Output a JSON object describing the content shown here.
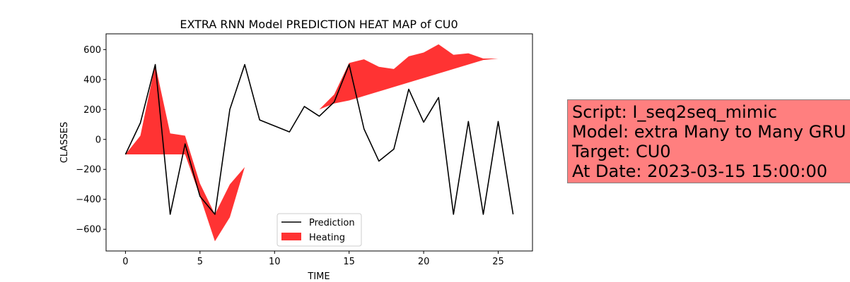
{
  "chart_data": {
    "type": "area",
    "title": "EXTRA RNN Model PREDICTION HEAT MAP of CU0",
    "xlabel": "TIME",
    "ylabel": "CLASSES",
    "xlim": [
      -1.3,
      27.3
    ],
    "ylim": [
      -745,
      705
    ],
    "xticks": [
      0,
      5,
      10,
      15,
      20,
      25
    ],
    "yticks": [
      -600,
      -400,
      -200,
      0,
      200,
      400,
      600
    ],
    "grid": false,
    "legend_position": "lower-center",
    "series": [
      {
        "name": "Prediction",
        "type": "line",
        "color": "#000000",
        "x": [
          0,
          1,
          2,
          3,
          4,
          5,
          6,
          7,
          8,
          9,
          10,
          11,
          12,
          13,
          14,
          15,
          16,
          17,
          18,
          19,
          20,
          21,
          22,
          23,
          24,
          25,
          26
        ],
        "values": [
          -100,
          110,
          500,
          -500,
          -30,
          -380,
          -500,
          200,
          500,
          130,
          90,
          50,
          220,
          155,
          250,
          500,
          70,
          -145,
          -65,
          335,
          115,
          280,
          -500,
          120,
          -500,
          120,
          -500
        ]
      },
      {
        "name": "Heating",
        "type": "fill_between",
        "color": "#ff0000",
        "opacity": 0.8,
        "x": [
          0,
          1,
          2,
          3,
          4,
          5,
          6,
          7,
          8,
          9,
          10,
          11,
          12,
          13,
          14,
          15,
          16,
          17,
          18,
          19,
          20,
          21,
          22,
          23,
          24,
          25,
          26
        ],
        "lower": [
          -100,
          -100,
          -100,
          -100,
          -100,
          -380,
          -680,
          -520,
          -185,
          -95,
          -40,
          -10,
          110,
          200,
          240,
          260,
          290,
          320,
          350,
          380,
          410,
          440,
          470,
          500,
          530,
          540,
          540
        ],
        "upper": [
          -100,
          25,
          500,
          40,
          25,
          -295,
          -500,
          -300,
          -185,
          -95,
          -40,
          -10,
          110,
          200,
          300,
          510,
          535,
          485,
          470,
          555,
          580,
          635,
          565,
          575,
          540,
          540,
          540
        ]
      }
    ]
  },
  "info_box": {
    "lines": [
      "Script: I_seq2seq_mimic",
      "Model: extra Many to Many GRU",
      "Target: CU0",
      "At Date: 2023-03-15 15:00:00"
    ]
  }
}
